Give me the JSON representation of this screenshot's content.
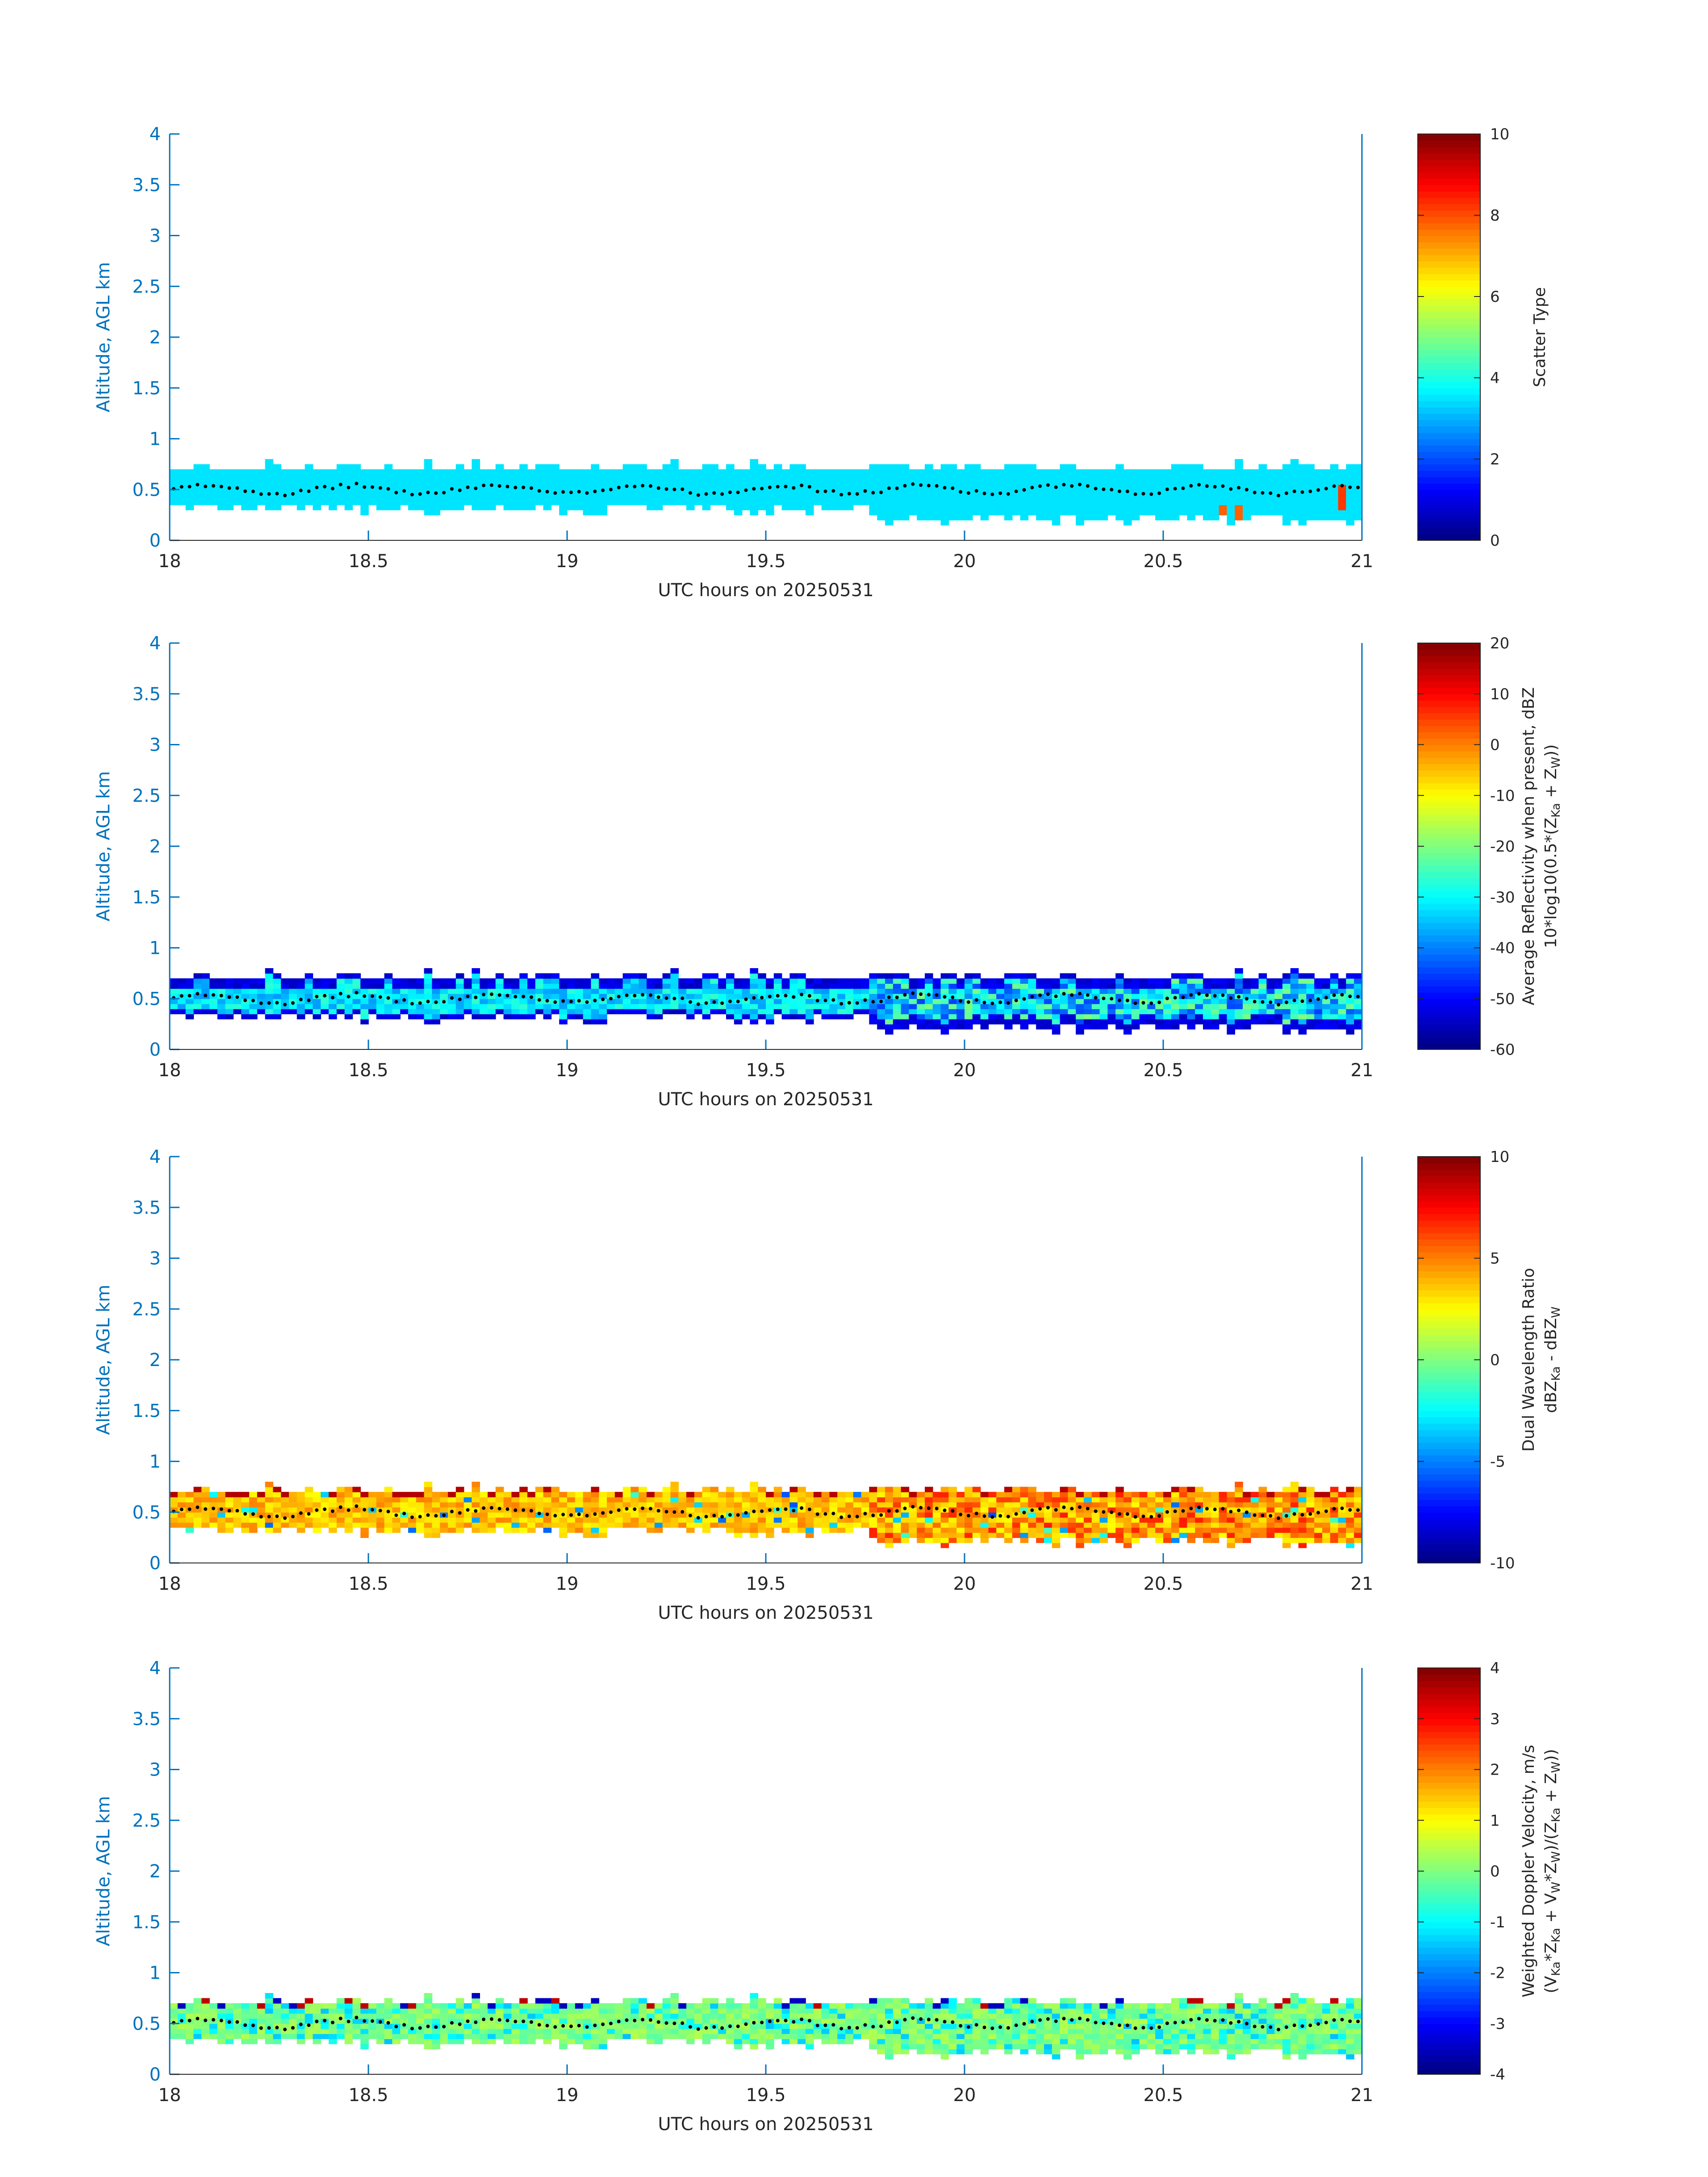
{
  "chart_data": [
    {
      "type": "heatmap",
      "x": [
        18,
        18.5,
        19,
        19.5,
        20,
        20.5,
        21
      ],
      "xlim": [
        18,
        21
      ],
      "ylim": [
        0,
        4
      ],
      "yticks": [
        "0",
        "0.5",
        "1",
        "1.5",
        "2",
        "2.5",
        "3",
        "3.5",
        "4"
      ],
      "xticks": [
        "18",
        "18.5",
        "19",
        "19.5",
        "20",
        "20.5",
        "21"
      ],
      "xlabel": "UTC hours on 20250531",
      "ylabel": "Altitude, AGL km",
      "colorbar": {
        "range": [
          0,
          10
        ],
        "ticks": [
          "0",
          "2",
          "4",
          "6",
          "8",
          "10"
        ],
        "label_lines": [
          "Scatter Type"
        ],
        "colormap": "jet"
      },
      "layer": {
        "bottom_km": 0.2,
        "top_km": 0.75,
        "center_km": 0.5
      },
      "field": "scatter",
      "typical_value": 3.5
    },
    {
      "type": "heatmap",
      "xlim": [
        18,
        21
      ],
      "ylim": [
        0,
        4
      ],
      "yticks": [
        "0",
        "0.5",
        "1",
        "1.5",
        "2",
        "2.5",
        "3",
        "3.5",
        "4"
      ],
      "xticks": [
        "18",
        "18.5",
        "19",
        "19.5",
        "20",
        "20.5",
        "21"
      ],
      "xlabel": "UTC hours on 20250531",
      "ylabel": "Altitude, AGL km",
      "colorbar": {
        "range": [
          -60,
          20
        ],
        "ticks": [
          "-60",
          "-50",
          "-40",
          "-30",
          "-20",
          "-10",
          "0",
          "10",
          "20"
        ],
        "label_lines": [
          "Average Reflectivity when present, dBZ",
          "10*log10(0.5*(Z",
          "Ka",
          " + Z",
          "W",
          "))"
        ],
        "colormap": "jet"
      },
      "layer": {
        "bottom_km": 0.2,
        "top_km": 0.75,
        "center_km": 0.5
      },
      "field": "reflectivity",
      "typical_value": -35
    },
    {
      "type": "heatmap",
      "xlim": [
        18,
        21
      ],
      "ylim": [
        0,
        4
      ],
      "yticks": [
        "0",
        "0.5",
        "1",
        "1.5",
        "2",
        "2.5",
        "3",
        "3.5",
        "4"
      ],
      "xticks": [
        "18",
        "18.5",
        "19",
        "19.5",
        "20",
        "20.5",
        "21"
      ],
      "xlabel": "UTC hours on 20250531",
      "ylabel": "Altitude, AGL km",
      "colorbar": {
        "range": [
          -10,
          10
        ],
        "ticks": [
          "-10",
          "-5",
          "0",
          "5",
          "10"
        ],
        "label_lines": [
          "Dual Wavelength Ratio",
          "dBZ",
          "Ka",
          " - dBZ",
          "W"
        ],
        "colormap": "jet"
      },
      "layer": {
        "bottom_km": 0.2,
        "top_km": 0.75,
        "center_km": 0.5
      },
      "field": "dwr",
      "typical_value": 3.5
    },
    {
      "type": "heatmap",
      "xlim": [
        18,
        21
      ],
      "ylim": [
        0,
        4
      ],
      "yticks": [
        "0",
        "0.5",
        "1",
        "1.5",
        "2",
        "2.5",
        "3",
        "3.5",
        "4"
      ],
      "xticks": [
        "18",
        "18.5",
        "19",
        "19.5",
        "20",
        "20.5",
        "21"
      ],
      "xlabel": "UTC hours on 20250531",
      "ylabel": "Altitude, AGL km",
      "colorbar": {
        "range": [
          -4,
          4
        ],
        "ticks": [
          "-4",
          "-3",
          "-2",
          "-1",
          "0",
          "1",
          "2",
          "3",
          "4"
        ],
        "label_lines": [
          "Weighted Doppler Velocity, m/s",
          "(V",
          "Ka",
          "*Z",
          "Ka",
          " + V",
          "W",
          "*Z",
          "W",
          ")/(Z",
          "Ka",
          " + Z",
          "W",
          "))"
        ],
        "colormap": "jet"
      },
      "layer": {
        "bottom_km": 0.2,
        "top_km": 0.75,
        "center_km": 0.5
      },
      "field": "velocity",
      "typical_value": -0.5
    }
  ]
}
